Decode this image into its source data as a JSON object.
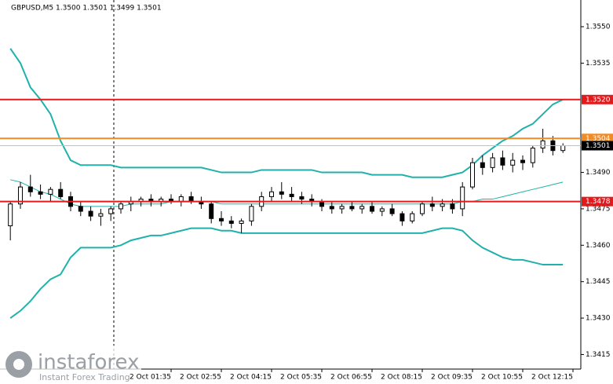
{
  "chart_data": {
    "type": "candlestick",
    "title": "GBPUSD,M5  1.3500 1.3501 1.3499 1.3501",
    "ylim": [
      1.3409,
      1.3561
    ],
    "yticks": [
      {
        "value": 1.355,
        "label": "1.3550"
      },
      {
        "value": 1.3535,
        "label": "1.3535"
      },
      {
        "value": 1.349,
        "label": "1.3490"
      },
      {
        "value": 1.3475,
        "label": "1.3475"
      },
      {
        "value": 1.346,
        "label": "1.3460"
      },
      {
        "value": 1.3445,
        "label": "1.3445"
      },
      {
        "value": 1.343,
        "label": "1.3430"
      },
      {
        "value": 1.3415,
        "label": "1.3415"
      }
    ],
    "xlim": [
      -1.03,
      56.78
    ],
    "xticks": [
      {
        "value": 16,
        "label": "2 Oct 01:35"
      },
      {
        "value": 21,
        "label": "2 Oct 02:55"
      },
      {
        "value": 26,
        "label": "2 Oct 04:15"
      },
      {
        "value": 31,
        "label": "2 Oct 05:35"
      },
      {
        "value": 36,
        "label": "2 Oct 06:55"
      },
      {
        "value": 41,
        "label": "2 Oct 08:15"
      },
      {
        "value": 46,
        "label": "2 Oct 09:35"
      },
      {
        "value": 51,
        "label": "2 Oct 10:55"
      },
      {
        "value": 56,
        "label": "2 Oct 12:15"
      }
    ],
    "candles": {
      "color": "#000000",
      "open": [
        1.3468,
        1.3477,
        1.3484,
        1.3482,
        1.3481,
        1.3483,
        1.348,
        1.3476,
        1.3474,
        1.3472,
        1.3473,
        1.3475,
        1.3477,
        1.3478,
        1.3479,
        1.3478,
        1.3479,
        1.3478,
        1.348,
        1.3478,
        1.3477,
        1.3471,
        1.347,
        1.3469,
        1.347,
        1.3476,
        1.348,
        1.3482,
        1.3481,
        1.348,
        1.3479,
        1.3478,
        1.3476,
        1.3475,
        1.3476,
        1.3475,
        1.3476,
        1.3474,
        1.3475,
        1.3473,
        1.347,
        1.3473,
        1.3477,
        1.3476,
        1.3477,
        1.3475,
        1.3484,
        1.3494,
        1.3492,
        1.3496,
        1.3493,
        1.3495,
        1.3494,
        1.35,
        1.3503,
        1.3499
      ],
      "high": [
        1.3478,
        1.3486,
        1.3489,
        1.3485,
        1.3484,
        1.3486,
        1.3482,
        1.3478,
        1.3476,
        1.3475,
        1.3476,
        1.3478,
        1.348,
        1.348,
        1.3481,
        1.348,
        1.3481,
        1.3481,
        1.3482,
        1.348,
        1.3478,
        1.3474,
        1.3472,
        1.3471,
        1.3477,
        1.3482,
        1.3484,
        1.3486,
        1.3484,
        1.3482,
        1.3481,
        1.3479,
        1.3478,
        1.3477,
        1.3478,
        1.3477,
        1.3478,
        1.3476,
        1.3477,
        1.3474,
        1.3474,
        1.3478,
        1.348,
        1.3479,
        1.3479,
        1.3486,
        1.3496,
        1.3497,
        1.3498,
        1.3499,
        1.3498,
        1.3497,
        1.3501,
        1.3508,
        1.3505,
        1.3502
      ],
      "low": [
        1.3462,
        1.3475,
        1.348,
        1.3479,
        1.3478,
        1.3479,
        1.3474,
        1.3472,
        1.347,
        1.3468,
        1.347,
        1.3473,
        1.3474,
        1.3476,
        1.3476,
        1.3476,
        1.3477,
        1.3476,
        1.3477,
        1.3475,
        1.3469,
        1.3468,
        1.3467,
        1.3465,
        1.3468,
        1.3474,
        1.3478,
        1.3479,
        1.3478,
        1.3477,
        1.3476,
        1.3474,
        1.3473,
        1.3473,
        1.3474,
        1.3473,
        1.3473,
        1.3472,
        1.3472,
        1.3468,
        1.3469,
        1.3472,
        1.3474,
        1.3474,
        1.3473,
        1.3472,
        1.3483,
        1.3489,
        1.349,
        1.3491,
        1.349,
        1.3491,
        1.3492,
        1.3498,
        1.3497,
        1.3498
      ],
      "close": [
        1.3477,
        1.3484,
        1.3482,
        1.3481,
        1.3483,
        1.348,
        1.3476,
        1.3474,
        1.3472,
        1.3473,
        1.3475,
        1.3477,
        1.3478,
        1.3479,
        1.3478,
        1.3479,
        1.3478,
        1.348,
        1.3478,
        1.3477,
        1.3471,
        1.347,
        1.3469,
        1.347,
        1.3476,
        1.348,
        1.3482,
        1.3481,
        1.348,
        1.3479,
        1.3478,
        1.3476,
        1.3475,
        1.3476,
        1.3475,
        1.3476,
        1.3474,
        1.3475,
        1.3473,
        1.347,
        1.3473,
        1.3477,
        1.3476,
        1.3477,
        1.3475,
        1.3484,
        1.3494,
        1.3492,
        1.3496,
        1.3493,
        1.3495,
        1.3494,
        1.35,
        1.3503,
        1.3499,
        1.3501
      ]
    },
    "series": [
      {
        "color": "#20b2aa",
        "width": 2,
        "values": [
          1.3541,
          1.3535,
          1.3525,
          1.352,
          1.3514,
          1.3503,
          1.3495,
          1.3493,
          1.3493,
          1.3493,
          1.3493,
          1.3492,
          1.3492,
          1.3492,
          1.3492,
          1.3492,
          1.3492,
          1.3492,
          1.3492,
          1.3492,
          1.3491,
          1.349,
          1.349,
          1.349,
          1.349,
          1.3491,
          1.3491,
          1.3491,
          1.3491,
          1.3491,
          1.3491,
          1.349,
          1.349,
          1.349,
          1.349,
          1.349,
          1.3489,
          1.3489,
          1.3489,
          1.3489,
          1.3488,
          1.3488,
          1.3488,
          1.3488,
          1.3489,
          1.349,
          1.3493,
          1.3497,
          1.35,
          1.3503,
          1.3505,
          1.3508,
          1.351,
          1.3514,
          1.3518,
          1.352
        ]
      },
      {
        "color": "#20b2aa",
        "width": 1,
        "values": [
          1.3487,
          1.3486,
          1.3484,
          1.3482,
          1.3481,
          1.3479,
          1.3477,
          1.3476,
          1.3476,
          1.3476,
          1.3476,
          1.3476,
          1.3477,
          1.3477,
          1.3477,
          1.3477,
          1.3478,
          1.3478,
          1.3478,
          1.3478,
          1.3478,
          1.3477,
          1.3477,
          1.3477,
          1.3477,
          1.3477,
          1.3477,
          1.3477,
          1.3477,
          1.3477,
          1.3477,
          1.3477,
          1.3477,
          1.3477,
          1.3477,
          1.3477,
          1.3477,
          1.3477,
          1.3477,
          1.3477,
          1.3477,
          1.3477,
          1.3477,
          1.3477,
          1.3477,
          1.3478,
          1.3478,
          1.3479,
          1.3479,
          1.348,
          1.3481,
          1.3482,
          1.3483,
          1.3484,
          1.3485,
          1.3486
        ]
      },
      {
        "color": "#20b2aa",
        "width": 2,
        "values": [
          1.343,
          1.3433,
          1.3437,
          1.3442,
          1.3446,
          1.3448,
          1.3455,
          1.3459,
          1.3459,
          1.3459,
          1.3459,
          1.346,
          1.3462,
          1.3463,
          1.3464,
          1.3464,
          1.3465,
          1.3466,
          1.3467,
          1.3467,
          1.3467,
          1.3466,
          1.3466,
          1.3465,
          1.3465,
          1.3465,
          1.3465,
          1.3465,
          1.3465,
          1.3465,
          1.3465,
          1.3465,
          1.3465,
          1.3465,
          1.3465,
          1.3465,
          1.3465,
          1.3465,
          1.3465,
          1.3465,
          1.3465,
          1.3465,
          1.3466,
          1.3467,
          1.3467,
          1.3466,
          1.3462,
          1.3459,
          1.3457,
          1.3455,
          1.3454,
          1.3454,
          1.3453,
          1.3452,
          1.3452,
          1.3452
        ]
      }
    ],
    "levels": [
      {
        "value": 1.352,
        "label": "1.3520",
        "color": "#e31a1c"
      },
      {
        "value": 1.3504,
        "label": "1.3504",
        "color": "#f08c28"
      },
      {
        "value": 1.3501,
        "label": "1.3501",
        "color": "#000000"
      },
      {
        "value": 1.3478,
        "label": "1.3478",
        "color": "#e31a1c"
      }
    ]
  },
  "logo": {
    "name": "instaforex",
    "tagline": "Instant Forex Trading"
  }
}
